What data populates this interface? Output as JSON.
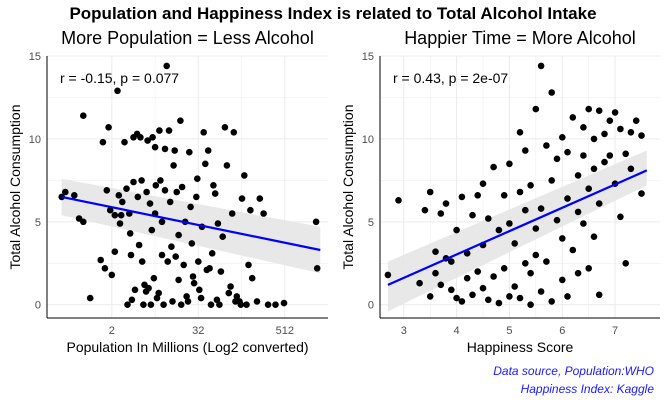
{
  "title": "Population and Happiness Index is related to Total Alcohol Intake",
  "captions": [
    "Data source, Population:WHO",
    "Happiness Index: Kaggle"
  ],
  "colors": {
    "points": "#000000",
    "fit_line": "#0000ff",
    "ci_band": "#e6e6e6",
    "grid": "#ebebeb",
    "caption": "#1a1aff"
  },
  "chart_data": [
    {
      "type": "scatter",
      "title": "More Population = Less Alcohol",
      "xlabel": "Population In Millions (Log2 converted)",
      "ylabel": "Total Alcohol Consumption",
      "annotation": "r = -0.15, p = 0.077",
      "x_scale": "log2",
      "xlim": [
        0.25,
        2048
      ],
      "ylim": [
        -0.8,
        15
      ],
      "xticks": [
        {
          "value": 2,
          "label": "2"
        },
        {
          "value": 32,
          "label": "32"
        },
        {
          "value": 512,
          "label": "512"
        }
      ],
      "yticks": [
        0,
        5,
        10,
        15
      ],
      "grid": true,
      "fit": {
        "x": [
          0.4,
          1600
        ],
        "y": [
          6.5,
          3.3
        ],
        "ci_low": [
          5.4,
          1.9
        ],
        "ci_high": [
          7.6,
          4.7
        ]
      },
      "points": [
        [
          0.4,
          6.5
        ],
        [
          0.45,
          6.8
        ],
        [
          0.6,
          6.6
        ],
        [
          0.7,
          5.2
        ],
        [
          0.8,
          11.4
        ],
        [
          0.8,
          5.0
        ],
        [
          1.0,
          0.4
        ],
        [
          1.4,
          2.7
        ],
        [
          1.5,
          9.8
        ],
        [
          1.6,
          2.2
        ],
        [
          1.7,
          6.9
        ],
        [
          1.8,
          10.7
        ],
        [
          1.9,
          5.7
        ],
        [
          2.0,
          1.8
        ],
        [
          2.2,
          3.2
        ],
        [
          2.2,
          5.4
        ],
        [
          2.4,
          12.9
        ],
        [
          2.5,
          6.6
        ],
        [
          2.6,
          4.9
        ],
        [
          2.7,
          5.4
        ],
        [
          2.8,
          6.2
        ],
        [
          3.0,
          9.8
        ],
        [
          3.2,
          7.0
        ],
        [
          3.3,
          0.0
        ],
        [
          3.5,
          5.5
        ],
        [
          3.6,
          4.3
        ],
        [
          3.7,
          3.0
        ],
        [
          3.8,
          0.3
        ],
        [
          4.0,
          10.1
        ],
        [
          4.0,
          7.4
        ],
        [
          4.2,
          0.9
        ],
        [
          4.5,
          10.3
        ],
        [
          4.6,
          6.5
        ],
        [
          4.8,
          3.6
        ],
        [
          5.0,
          10.1
        ],
        [
          5.2,
          7.5
        ],
        [
          5.3,
          2.6
        ],
        [
          5.5,
          0.0
        ],
        [
          5.7,
          1.2
        ],
        [
          6.0,
          0.8
        ],
        [
          6.1,
          6.8
        ],
        [
          6.3,
          9.9
        ],
        [
          6.5,
          1.0
        ],
        [
          6.8,
          6.1
        ],
        [
          7.0,
          0.0
        ],
        [
          7.2,
          4.5
        ],
        [
          7.4,
          10.1
        ],
        [
          7.7,
          1.6
        ],
        [
          8.0,
          9.5
        ],
        [
          8.0,
          5.5
        ],
        [
          8.2,
          7.2
        ],
        [
          8.5,
          0.4
        ],
        [
          9.0,
          0.7
        ],
        [
          9.2,
          10.5
        ],
        [
          9.5,
          7.5
        ],
        [
          10,
          3.0
        ],
        [
          10,
          5.0
        ],
        [
          10.5,
          0.0
        ],
        [
          11,
          9.4
        ],
        [
          11,
          6.9
        ],
        [
          11.6,
          14.4
        ],
        [
          12,
          2.6
        ],
        [
          12.5,
          10.5
        ],
        [
          13,
          6.2
        ],
        [
          13.5,
          3.5
        ],
        [
          14,
          0.2
        ],
        [
          14.5,
          8.4
        ],
        [
          15,
          9.3
        ],
        [
          15.5,
          2.9
        ],
        [
          16,
          6.8
        ],
        [
          17,
          1.5
        ],
        [
          17,
          4.2
        ],
        [
          18,
          11.1
        ],
        [
          18.5,
          0.0
        ],
        [
          19,
          7.1
        ],
        [
          20,
          2.4
        ],
        [
          21,
          5.0
        ],
        [
          22,
          0.5
        ],
        [
          23,
          0.2
        ],
        [
          24,
          9.2
        ],
        [
          25,
          5.9
        ],
        [
          26,
          3.7
        ],
        [
          27,
          1.7
        ],
        [
          28,
          1.3
        ],
        [
          30,
          6.5
        ],
        [
          31,
          7.6
        ],
        [
          32,
          2.6
        ],
        [
          33,
          0.9
        ],
        [
          35,
          0.4
        ],
        [
          36,
          4.7
        ],
        [
          38,
          10.4
        ],
        [
          40,
          8.5
        ],
        [
          42,
          2.1
        ],
        [
          44,
          9.3
        ],
        [
          46,
          2.2
        ],
        [
          48,
          0.0
        ],
        [
          50,
          3.1
        ],
        [
          52,
          7.2
        ],
        [
          55,
          6.7
        ],
        [
          58,
          0.3
        ],
        [
          60,
          4.9
        ],
        [
          63,
          0.0
        ],
        [
          66,
          2.0
        ],
        [
          70,
          4.1
        ],
        [
          75,
          10.7
        ],
        [
          80,
          8.4
        ],
        [
          85,
          0.7
        ],
        [
          90,
          1.1
        ],
        [
          95,
          5.5
        ],
        [
          100,
          10.4
        ],
        [
          105,
          0.2
        ],
        [
          110,
          0.5
        ],
        [
          120,
          0.2
        ],
        [
          125,
          0.0
        ],
        [
          130,
          6.4
        ],
        [
          140,
          7.8
        ],
        [
          150,
          0.0
        ],
        [
          160,
          2.4
        ],
        [
          170,
          5.7
        ],
        [
          180,
          1.6
        ],
        [
          210,
          0.2
        ],
        [
          230,
          6.4
        ],
        [
          260,
          5.5
        ],
        [
          300,
          0.0
        ],
        [
          380,
          0.0
        ],
        [
          500,
          0.1
        ],
        [
          1400,
          5.0
        ],
        [
          1450,
          2.2
        ]
      ]
    },
    {
      "type": "scatter",
      "title": "Happier Time = More Alcohol",
      "xlabel": "Happiness Score",
      "ylabel": "Total Alcohol Consumption",
      "annotation": "r = 0.43, p = 2e-07",
      "xlim": [
        2.55,
        7.85
      ],
      "ylim": [
        -0.8,
        15
      ],
      "xticks": [
        {
          "value": 3,
          "label": "3"
        },
        {
          "value": 4,
          "label": "4"
        },
        {
          "value": 5,
          "label": "5"
        },
        {
          "value": 6,
          "label": "6"
        },
        {
          "value": 7,
          "label": "7"
        }
      ],
      "yticks": [
        0,
        5,
        10,
        15
      ],
      "grid": true,
      "fit": {
        "x": [
          2.7,
          7.6
        ],
        "y": [
          1.2,
          8.1
        ],
        "ci_low": [
          -0.4,
          7.2
        ],
        "ci_high": [
          2.6,
          9.3
        ]
      },
      "points": [
        [
          2.7,
          1.8
        ],
        [
          2.9,
          6.3
        ],
        [
          3.3,
          1.3
        ],
        [
          3.4,
          5.7
        ],
        [
          3.5,
          6.8
        ],
        [
          3.5,
          0.5
        ],
        [
          3.6,
          3.2
        ],
        [
          3.6,
          1.9
        ],
        [
          3.7,
          5.5
        ],
        [
          3.7,
          1.2
        ],
        [
          3.8,
          6.1
        ],
        [
          3.8,
          2.8
        ],
        [
          3.9,
          0.9
        ],
        [
          3.9,
          2.6
        ],
        [
          4.0,
          0.4
        ],
        [
          4.0,
          4.5
        ],
        [
          4.1,
          6.5
        ],
        [
          4.1,
          0.2
        ],
        [
          4.2,
          1.6
        ],
        [
          4.2,
          3.1
        ],
        [
          4.3,
          5.4
        ],
        [
          4.3,
          0.6
        ],
        [
          4.4,
          6.6
        ],
        [
          4.4,
          2.0
        ],
        [
          4.5,
          1.0
        ],
        [
          4.5,
          7.3
        ],
        [
          4.5,
          3.6
        ],
        [
          4.6,
          0.3
        ],
        [
          4.6,
          5.2
        ],
        [
          4.7,
          8.3
        ],
        [
          4.7,
          1.7
        ],
        [
          4.8,
          0.1
        ],
        [
          4.8,
          4.5
        ],
        [
          4.9,
          2.2
        ],
        [
          4.9,
          6.6
        ],
        [
          5.0,
          0.5
        ],
        [
          5.0,
          8.5
        ],
        [
          5.0,
          4.9
        ],
        [
          5.1,
          1.1
        ],
        [
          5.1,
          3.7
        ],
        [
          5.2,
          6.8
        ],
        [
          5.2,
          0.4
        ],
        [
          5.2,
          10.4
        ],
        [
          5.3,
          2.5
        ],
        [
          5.3,
          5.7
        ],
        [
          5.3,
          9.3
        ],
        [
          5.4,
          0.0
        ],
        [
          5.4,
          1.9
        ],
        [
          5.4,
          7.2
        ],
        [
          5.5,
          3.0
        ],
        [
          5.5,
          11.8
        ],
        [
          5.5,
          4.6
        ],
        [
          5.6,
          14.4
        ],
        [
          5.6,
          0.8
        ],
        [
          5.6,
          5.8
        ],
        [
          5.7,
          9.6
        ],
        [
          5.7,
          2.6
        ],
        [
          5.8,
          7.5
        ],
        [
          5.8,
          12.8
        ],
        [
          5.8,
          0.2
        ],
        [
          5.9,
          5.1
        ],
        [
          5.9,
          8.8
        ],
        [
          6.0,
          1.5
        ],
        [
          6.0,
          4.0
        ],
        [
          6.0,
          10.1
        ],
        [
          6.1,
          6.4
        ],
        [
          6.1,
          0.5
        ],
        [
          6.1,
          9.2
        ],
        [
          6.2,
          3.3
        ],
        [
          6.2,
          11.3
        ],
        [
          6.3,
          5.6
        ],
        [
          6.3,
          7.8
        ],
        [
          6.3,
          1.9
        ],
        [
          6.4,
          10.7
        ],
        [
          6.4,
          9.0
        ],
        [
          6.4,
          4.9
        ],
        [
          6.5,
          7.0
        ],
        [
          6.5,
          11.8
        ],
        [
          6.5,
          2.2
        ],
        [
          6.6,
          10.0
        ],
        [
          6.6,
          8.2
        ],
        [
          6.6,
          4.1
        ],
        [
          6.7,
          11.7
        ],
        [
          6.7,
          6.1
        ],
        [
          6.7,
          0.6
        ],
        [
          6.8,
          10.3
        ],
        [
          6.8,
          8.6
        ],
        [
          6.9,
          11.1
        ],
        [
          6.9,
          9.0
        ],
        [
          7.0,
          7.3
        ],
        [
          7.0,
          11.6
        ],
        [
          7.1,
          5.3
        ],
        [
          7.1,
          10.6
        ],
        [
          7.2,
          2.5
        ],
        [
          7.2,
          9.1
        ],
        [
          7.3,
          10.4
        ],
        [
          7.3,
          8.2
        ],
        [
          7.4,
          11.1
        ],
        [
          7.5,
          10.2
        ],
        [
          7.5,
          6.7
        ]
      ]
    }
  ]
}
